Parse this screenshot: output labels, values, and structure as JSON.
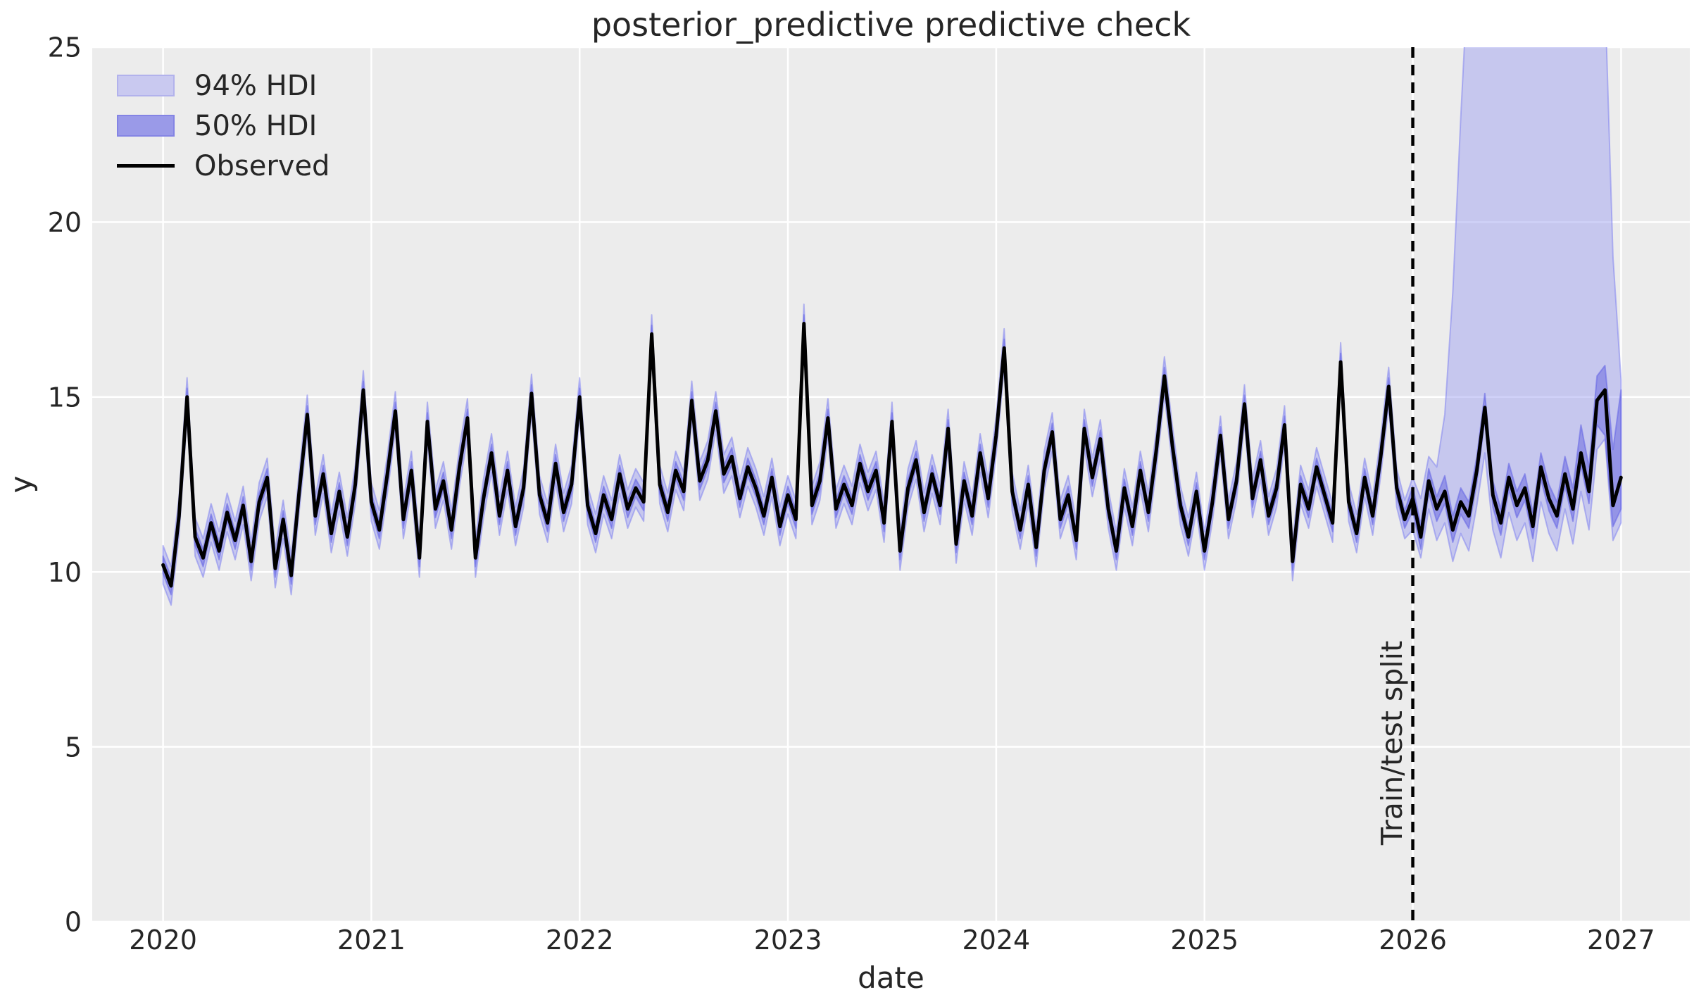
{
  "title": "posterior_predictive predictive check",
  "axes": {
    "xlabel": "date",
    "ylabel": "y",
    "xticks": [
      2020,
      2021,
      2022,
      2023,
      2024,
      2025,
      2026,
      2027
    ],
    "yticks": [
      0,
      5,
      10,
      15,
      20,
      25
    ],
    "xlim": [
      2019.66,
      2027.33
    ],
    "ylim": [
      0,
      25
    ],
    "grid": true
  },
  "legend": {
    "position": "upper-left",
    "items": [
      {
        "label": "94% HDI",
        "type": "patch",
        "fill": "#c9c9f0",
        "edge": "#b2b2ec"
      },
      {
        "label": "50% HDI",
        "type": "patch",
        "fill": "#9a9ae8",
        "edge": "#8484e4"
      },
      {
        "label": "Observed",
        "type": "line",
        "color": "#000000"
      }
    ]
  },
  "annotation": {
    "label": "Train/test split",
    "x": 2026.0
  },
  "colors": {
    "figure_bg": "#ffffff",
    "plot_bg": "#ececec",
    "grid": "#ffffff",
    "text": "#262626",
    "observed_line": "#000000",
    "hdi94_fill": "rgba(157,159,240,0.48)",
    "hdi94_edge": "rgba(130,132,240,0.55)",
    "hdi50_fill": "rgba(87,86,220,0.45)",
    "hdi50_edge": "rgba(100,100,230,0.55)",
    "split_line": "#000000"
  },
  "chart_data": {
    "type": "line",
    "title": "posterior_predictive predictive check",
    "xlabel": "date",
    "ylabel": "y",
    "xlim": [
      2019.66,
      2027.33
    ],
    "ylim": [
      0,
      25
    ],
    "legend_position": "upper-left",
    "train_test_split_x": 2026.0,
    "x_start": 2020.0,
    "x_step_years": 0.03846,
    "n_points": 183,
    "observed": [
      10.2,
      9.6,
      11.6,
      15.0,
      11.0,
      10.4,
      11.4,
      10.6,
      11.7,
      10.9,
      11.9,
      10.3,
      12.0,
      12.7,
      10.1,
      11.5,
      9.9,
      12.3,
      14.5,
      11.6,
      12.8,
      11.1,
      12.3,
      11.0,
      12.5,
      15.2,
      12.0,
      11.2,
      12.8,
      14.6,
      11.5,
      12.9,
      10.4,
      14.3,
      11.8,
      12.6,
      11.2,
      13.0,
      14.4,
      10.4,
      12.1,
      13.4,
      11.6,
      12.9,
      11.3,
      12.4,
      15.1,
      12.2,
      11.4,
      13.1,
      11.7,
      12.5,
      15.0,
      11.9,
      11.1,
      12.2,
      11.5,
      12.8,
      11.8,
      12.4,
      12.0,
      16.8,
      12.5,
      11.7,
      12.9,
      12.3,
      14.9,
      12.6,
      13.2,
      14.6,
      12.8,
      13.3,
      12.1,
      13.0,
      12.4,
      11.6,
      12.7,
      11.3,
      12.2,
      11.5,
      17.1,
      11.9,
      12.6,
      14.4,
      11.8,
      12.5,
      11.9,
      13.1,
      12.3,
      12.9,
      11.4,
      14.3,
      10.6,
      12.4,
      13.2,
      11.7,
      12.8,
      11.9,
      14.1,
      10.8,
      12.6,
      11.6,
      13.4,
      12.1,
      13.9,
      16.4,
      12.3,
      11.2,
      12.5,
      10.7,
      12.9,
      14.0,
      11.5,
      12.2,
      10.9,
      14.1,
      12.7,
      13.8,
      11.8,
      10.6,
      12.4,
      11.3,
      12.9,
      11.7,
      13.5,
      15.6,
      13.6,
      11.9,
      11.0,
      12.3,
      10.6,
      12.0,
      13.9,
      11.5,
      12.6,
      14.8,
      12.1,
      13.2,
      11.6,
      12.4,
      14.2,
      10.3,
      12.5,
      11.8,
      13.0,
      12.2,
      11.4,
      16.0,
      12.0,
      11.1,
      12.7,
      11.6,
      13.3,
      15.3,
      12.4,
      11.5,
      12.1,
      11.0,
      12.6,
      11.8,
      12.3,
      11.2,
      12.0,
      11.6,
      12.9,
      14.7,
      12.2,
      11.4,
      12.7,
      11.9,
      12.4,
      11.3,
      13.0,
      12.1,
      11.6,
      12.8,
      11.8,
      13.4,
      12.3,
      14.9,
      15.2,
      11.9,
      12.7
    ],
    "hdi_train": {
      "hdi94_halfwidth": 0.55,
      "hdi50_halfwidth": 0.25
    },
    "forecast_start_index": 156,
    "forecast": {
      "hi94": [
        12.7,
        12.1,
        13.3,
        13.0,
        14.5,
        18.0,
        23.0,
        27.5,
        28.0,
        28.0,
        28.0,
        28.0,
        28.0,
        28.0,
        28.0,
        28.0,
        28.0,
        28.0,
        28.0,
        28.0,
        28.0,
        28.0,
        28.0,
        27.8,
        26.5,
        19.0,
        15.5
      ],
      "lo94": [
        11.2,
        10.4,
        11.8,
        10.9,
        11.4,
        10.3,
        11.1,
        10.6,
        11.9,
        13.4,
        11.2,
        10.4,
        11.7,
        10.9,
        11.4,
        10.3,
        12.0,
        11.1,
        10.6,
        11.8,
        10.8,
        12.3,
        11.2,
        13.5,
        13.8,
        10.9,
        11.4
      ],
      "hi50": [
        12.45,
        11.35,
        12.95,
        12.15,
        12.75,
        11.6,
        12.4,
        12.0,
        13.3,
        15.1,
        12.6,
        11.8,
        13.1,
        12.3,
        12.8,
        11.7,
        13.4,
        12.5,
        12.0,
        13.3,
        12.4,
        14.2,
        13.0,
        15.6,
        15.9,
        13.5,
        15.2
      ],
      "lo50": [
        11.75,
        10.65,
        12.25,
        11.45,
        11.95,
        10.85,
        11.65,
        11.25,
        12.55,
        14.35,
        11.85,
        11.05,
        12.35,
        11.55,
        12.05,
        10.95,
        12.65,
        11.75,
        11.25,
        12.45,
        11.45,
        13.05,
        11.95,
        14.2,
        13.9,
        11.3,
        11.8
      ]
    }
  }
}
